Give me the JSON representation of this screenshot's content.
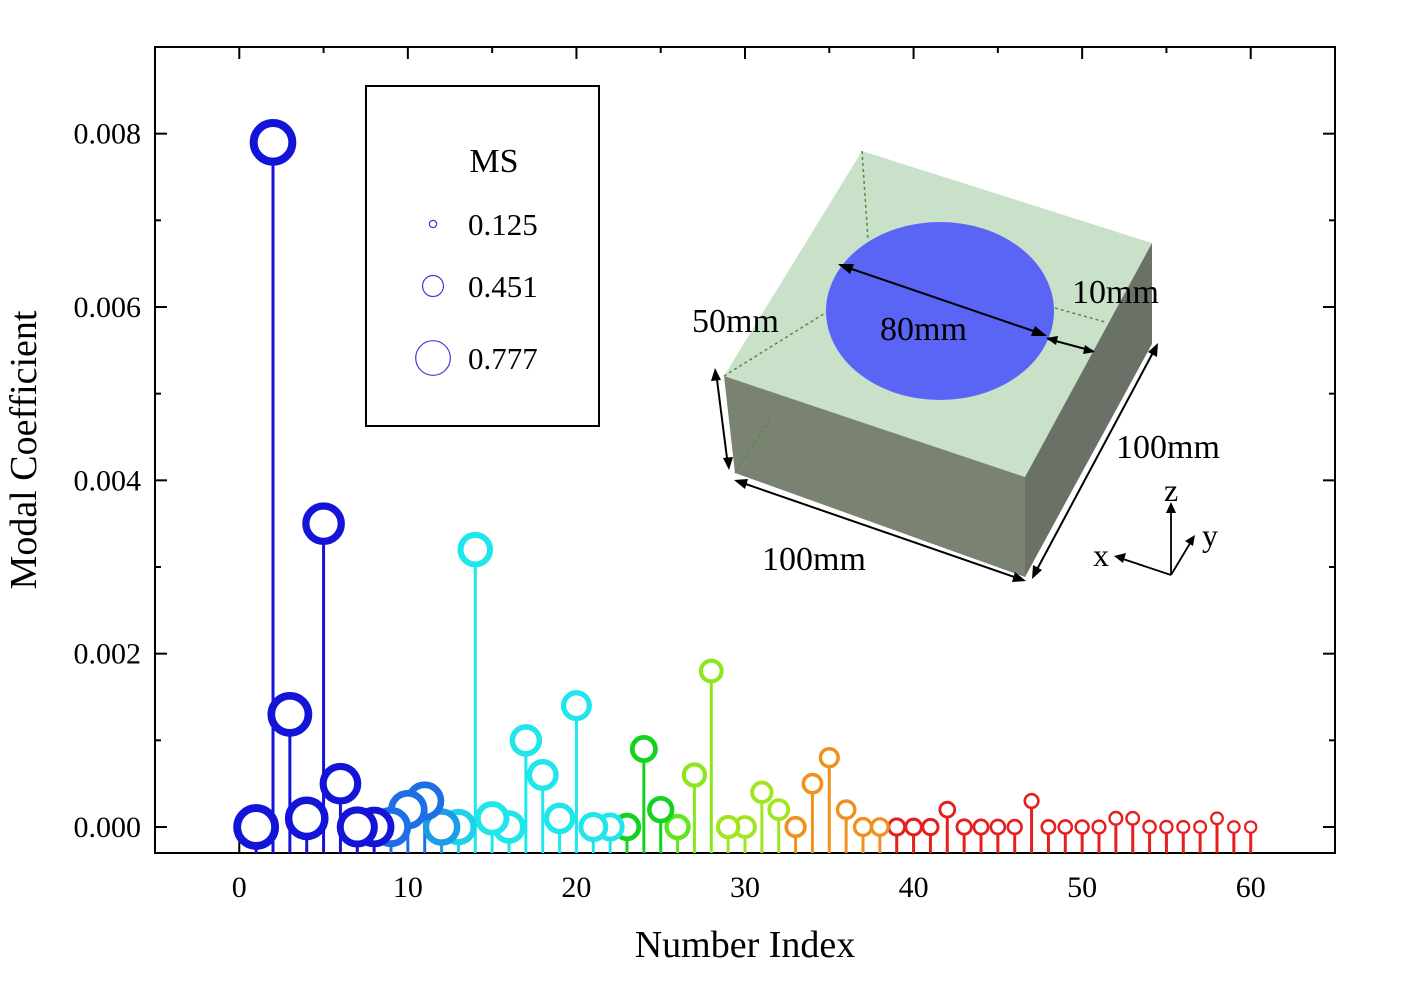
{
  "chart_data": {
    "type": "scatter",
    "subtype": "stem",
    "xlabel": "Number Index",
    "ylabel": "Modal Coefficient",
    "xlim": [
      -5,
      65
    ],
    "ylim": [
      -0.0003,
      0.009
    ],
    "xticks": [
      0,
      10,
      20,
      30,
      40,
      50,
      60
    ],
    "xtick_labels": [
      "0",
      "10",
      "20",
      "30",
      "40",
      "50",
      "60"
    ],
    "yticks": [
      0,
      0.002,
      0.004,
      0.006,
      0.008
    ],
    "ytick_labels": [
      "0.000",
      "0.002",
      "0.004",
      "0.006",
      "0.008"
    ],
    "grid": false,
    "x": [
      1,
      2,
      3,
      4,
      5,
      6,
      7,
      8,
      9,
      10,
      11,
      12,
      13,
      14,
      15,
      16,
      17,
      18,
      19,
      20,
      21,
      22,
      23,
      24,
      25,
      26,
      27,
      28,
      29,
      30,
      31,
      32,
      33,
      34,
      35,
      36,
      37,
      38,
      39,
      40,
      41,
      42,
      43,
      44,
      45,
      46,
      47,
      48,
      49,
      50,
      51,
      52,
      53,
      54,
      55,
      56,
      57,
      58,
      59,
      60
    ],
    "values": [
      0.0,
      0.0079,
      0.0013,
      0.0001,
      0.0035,
      0.0005,
      0.0,
      0.0,
      0.0,
      0.0002,
      0.0003,
      0.0,
      0.0,
      0.0032,
      0.0001,
      0.0,
      0.001,
      0.0006,
      0.0001,
      0.0014,
      0.0,
      0.0,
      0.0,
      0.0009,
      0.0002,
      0.0,
      0.0006,
      0.0018,
      0.0,
      0.0,
      0.0004,
      0.0002,
      0.0,
      0.0005,
      0.0008,
      0.0002,
      0.0,
      0.0,
      0.0,
      0.0,
      0.0,
      0.0002,
      0.0,
      0.0,
      0.0,
      0.0,
      0.0003,
      0.0,
      0.0,
      0.0,
      0.0,
      0.0001,
      0.0001,
      0.0,
      0.0,
      0.0,
      0.0,
      0.0001,
      0.0,
      0.0
    ],
    "marker_size_MS": [
      0.76,
      0.777,
      0.74,
      0.72,
      0.7,
      0.68,
      0.67,
      0.66,
      0.65,
      0.64,
      0.63,
      0.6,
      0.58,
      0.56,
      0.54,
      0.52,
      0.5,
      0.49,
      0.48,
      0.47,
      0.45,
      0.43,
      0.42,
      0.41,
      0.4,
      0.38,
      0.36,
      0.35,
      0.34,
      0.33,
      0.32,
      0.31,
      0.3,
      0.29,
      0.28,
      0.27,
      0.26,
      0.25,
      0.24,
      0.23,
      0.22,
      0.21,
      0.2,
      0.195,
      0.19,
      0.185,
      0.18,
      0.175,
      0.17,
      0.165,
      0.16,
      0.158,
      0.155,
      0.15,
      0.145,
      0.14,
      0.138,
      0.135,
      0.13,
      0.125
    ],
    "colors": [
      "#1414d9",
      "#1414d9",
      "#1414d9",
      "#1414d9",
      "#1414d9",
      "#1414d9",
      "#1414d9",
      "#1414d9",
      "#1e6ee6",
      "#1e6ee6",
      "#1e6ee6",
      "#1e9be6",
      "#1ed2eb",
      "#1ee6eb",
      "#1ee6eb",
      "#1ee6eb",
      "#1ee6eb",
      "#1ee6eb",
      "#1ee6eb",
      "#1ee6eb",
      "#1ee6eb",
      "#1ee6eb",
      "#14d21e",
      "#14d21e",
      "#14d21e",
      "#5fe61e",
      "#8ce61e",
      "#8ce61e",
      "#a0e61e",
      "#a0e61e",
      "#a0e61e",
      "#a0e61e",
      "#f0901e",
      "#f0901e",
      "#f0901e",
      "#f0901e",
      "#f0901e",
      "#f0901e",
      "#e61e1e",
      "#e61e1e",
      "#e61e1e",
      "#e61e1e",
      "#e61e1e",
      "#e61e1e",
      "#e61e1e",
      "#e61e1e",
      "#e61e1e",
      "#e61e1e",
      "#e61e1e",
      "#e61e1e",
      "#e61e1e",
      "#e61e1e",
      "#e61e1e",
      "#e61e1e",
      "#e61e1e",
      "#e61e1e",
      "#e61e1e",
      "#e61e1e",
      "#e61e1e",
      "#e61e1e"
    ],
    "legend": {
      "title": "MS",
      "placement": "top-left",
      "entries": [
        {
          "label": "0.125",
          "ms": 0.125
        },
        {
          "label": "0.451",
          "ms": 0.451
        },
        {
          "label": "0.777",
          "ms": 0.777
        }
      ],
      "marker_color": "#3c3cd2"
    },
    "inset": {
      "description_labels": {
        "height": "50mm",
        "diameter": "80mm",
        "margin": "10mm",
        "depth": "100mm",
        "width": "100mm",
        "axis_z": "z",
        "axis_y": "y",
        "axis_x": "x"
      },
      "colors": {
        "top": "#c8e1c8",
        "front": "#7a8272",
        "side": "#6a7268",
        "hole": "#5a64f5"
      }
    }
  }
}
